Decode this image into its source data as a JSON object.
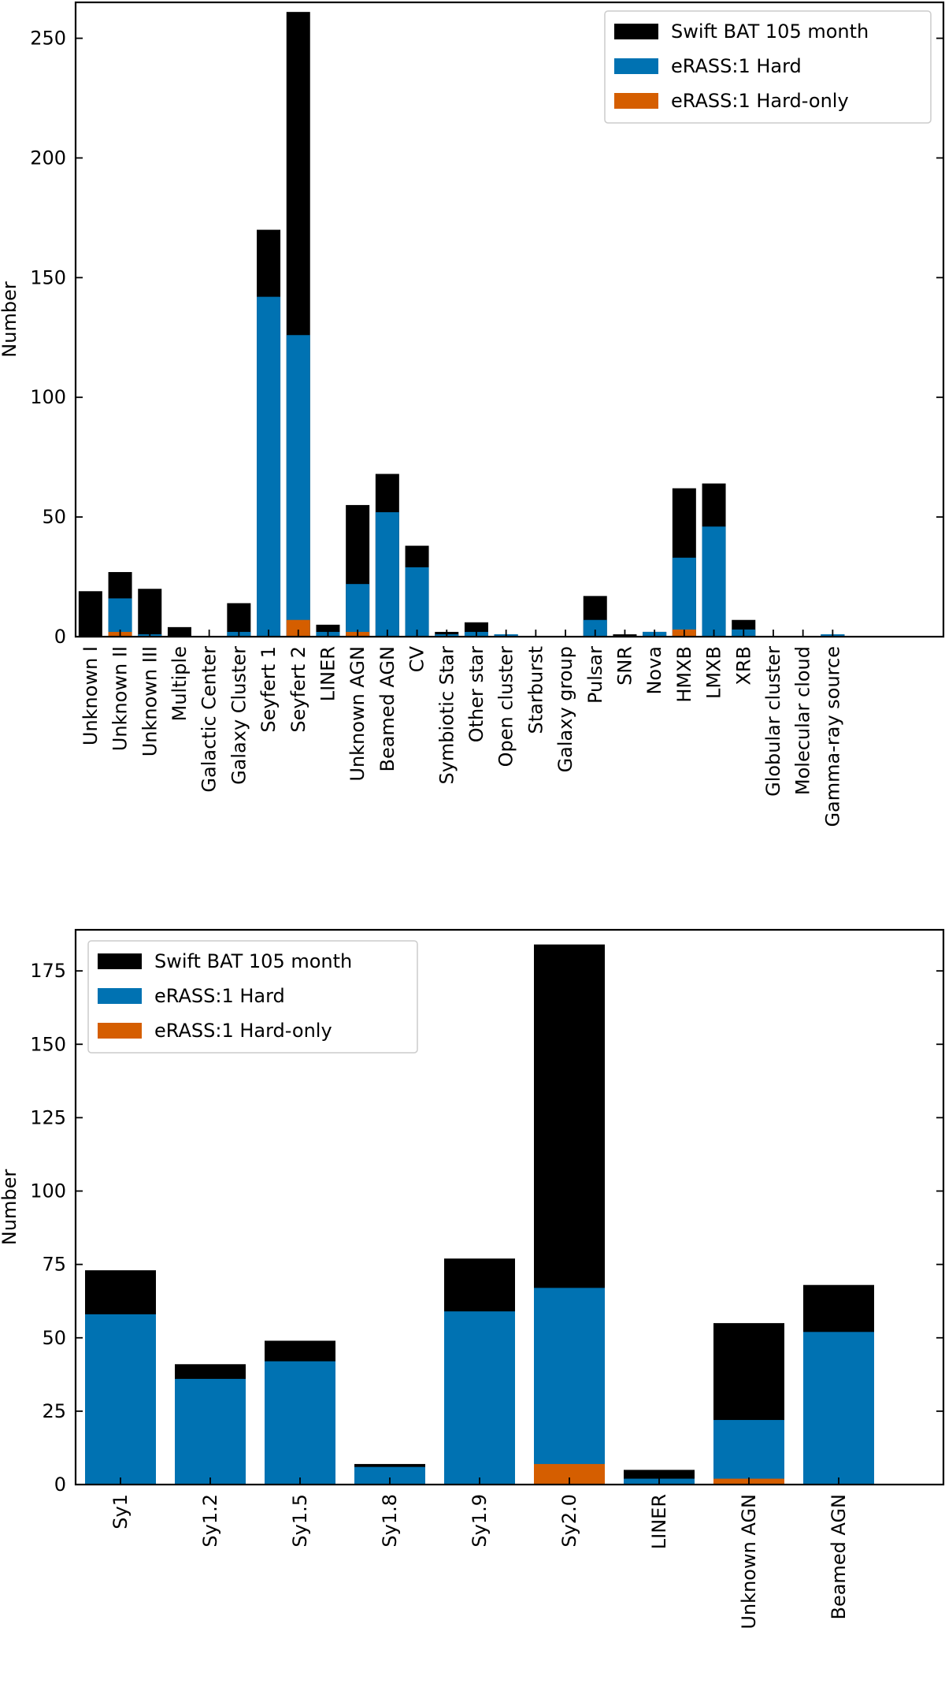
{
  "chart_data": [
    {
      "type": "bar",
      "stacked": "overlay",
      "title": "",
      "xlabel": "",
      "ylabel": "Number",
      "ylim": [
        0,
        265
      ],
      "yticks": [
        0,
        50,
        100,
        150,
        200,
        250
      ],
      "legend_position": "top-right",
      "categories": [
        "Unknown I",
        "Unknown II",
        "Unknown III",
        "Multiple",
        "Galactic Center",
        "Galaxy Cluster",
        "Seyfert 1",
        "Seyfert 2",
        "LINER",
        "Unknown AGN",
        "Beamed AGN",
        "CV",
        "Symbiotic Star",
        "Other star",
        "Open cluster",
        "Starburst",
        "Galaxy group",
        "Pulsar",
        "SNR",
        "Nova",
        "HMXB",
        "LMXB",
        "XRB",
        "Globular cluster",
        "Molecular cloud",
        "Gamma-ray source"
      ],
      "series": [
        {
          "name": "Swift BAT 105 month",
          "color": "#000000",
          "values": [
            19,
            27,
            20,
            4,
            0,
            14,
            170,
            261,
            5,
            55,
            68,
            38,
            2,
            6,
            1,
            0,
            0,
            17,
            1,
            2,
            62,
            64,
            7,
            0,
            0,
            1
          ]
        },
        {
          "name": "eRASS:1 Hard",
          "color": "#0072b2",
          "values": [
            0,
            16,
            1,
            0,
            0,
            2,
            142,
            126,
            2,
            22,
            52,
            29,
            1,
            2,
            1,
            0,
            0,
            7,
            0,
            2,
            33,
            46,
            3,
            0,
            0,
            1
          ]
        },
        {
          "name": "eRASS:1 Hard-only",
          "color": "#d55e00",
          "values": [
            0,
            2,
            0,
            0,
            0,
            0,
            0,
            7,
            0,
            2,
            0,
            0,
            0,
            0,
            0,
            0,
            0,
            0,
            0,
            0,
            3,
            0,
            0,
            0,
            0,
            0
          ]
        }
      ]
    },
    {
      "type": "bar",
      "stacked": "overlay",
      "title": "",
      "xlabel": "",
      "ylabel": "Number",
      "ylim": [
        0,
        189
      ],
      "yticks": [
        0,
        25,
        50,
        75,
        100,
        125,
        150,
        175
      ],
      "legend_position": "top-left",
      "categories": [
        "Sy1",
        "Sy1.2",
        "Sy1.5",
        "Sy1.8",
        "Sy1.9",
        "Sy2.0",
        "LINER",
        "Unknown AGN",
        "Beamed AGN"
      ],
      "series": [
        {
          "name": "Swift BAT 105 month",
          "color": "#000000",
          "values": [
            73,
            41,
            49,
            7,
            77,
            184,
            5,
            55,
            68
          ]
        },
        {
          "name": "eRASS:1 Hard",
          "color": "#0072b2",
          "values": [
            58,
            36,
            42,
            6,
            59,
            67,
            2,
            22,
            52
          ]
        },
        {
          "name": "eRASS:1 Hard-only",
          "color": "#d55e00",
          "values": [
            0,
            0,
            0,
            0,
            0,
            7,
            0,
            2,
            0
          ]
        }
      ]
    }
  ]
}
